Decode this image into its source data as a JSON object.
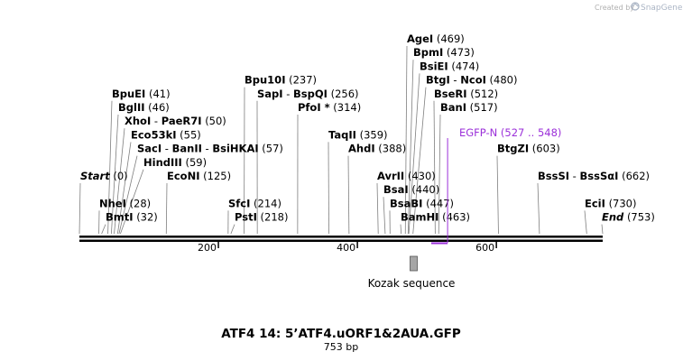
{
  "credit": {
    "prefix": "Created by",
    "brand": "SnapGene"
  },
  "title": "ATF4 14: 5’ATF4.uORF1&2AUA.GFP",
  "subtitle": "753 bp",
  "map": {
    "length": 753
  },
  "ticks": [
    {
      "pos": 200,
      "label": "200"
    },
    {
      "pos": 400,
      "label": "400"
    },
    {
      "pos": 600,
      "label": "600"
    }
  ],
  "sites": [
    {
      "names": [
        "AgeI"
      ],
      "pos_label": "(469)",
      "pos": 469,
      "row": 0
    },
    {
      "names": [
        "BpmI"
      ],
      "pos_label": "(473)",
      "pos": 473,
      "row": 1
    },
    {
      "names": [
        "BsiEI"
      ],
      "pos_label": "(474)",
      "pos": 474,
      "row": 2
    },
    {
      "names": [
        "BtgI",
        "NcoI"
      ],
      "pos_label": "(480)",
      "pos": 480,
      "row": 3
    },
    {
      "names": [
        "BseRI"
      ],
      "pos_label": "(512)",
      "pos": 512,
      "row": 4
    },
    {
      "names": [
        "BanI"
      ],
      "pos_label": "(517)",
      "pos": 517,
      "row": 5
    },
    {
      "names": [
        "Bpu10I"
      ],
      "pos_label": "(237)",
      "pos": 237,
      "row": 3
    },
    {
      "names": [
        "SapI",
        "BspQI"
      ],
      "pos_label": "(256)",
      "pos": 256,
      "row": 4
    },
    {
      "names": [
        "PfoI *"
      ],
      "pos_label": "(314)",
      "pos": 314,
      "row": 5
    },
    {
      "names": [
        "BpuEI"
      ],
      "pos_label": "(41)",
      "pos": 41,
      "row": 4
    },
    {
      "names": [
        "BglII"
      ],
      "pos_label": "(46)",
      "pos": 46,
      "row": 5
    },
    {
      "names": [
        "XhoI",
        "PaeR7I"
      ],
      "pos_label": "(50)",
      "pos": 50,
      "row": 6
    },
    {
      "names": [
        "Eco53kI"
      ],
      "pos_label": "(55)",
      "pos": 55,
      "row": 7
    },
    {
      "names": [
        "SacI",
        "BanII",
        "BsiHKAI"
      ],
      "pos_label": "(57)",
      "pos": 57,
      "row": 8
    },
    {
      "names": [
        "HindIII"
      ],
      "pos_label": "(59)",
      "pos": 59,
      "row": 9
    },
    {
      "names": [
        "TaqII"
      ],
      "pos_label": "(359)",
      "pos": 359,
      "row": 7
    },
    {
      "names": [
        "AhdI"
      ],
      "pos_label": "(388)",
      "pos": 388,
      "row": 8
    },
    {
      "names": [
        "AvrII"
      ],
      "pos_label": "(430)",
      "pos": 430,
      "row": 10
    },
    {
      "names": [
        "BsaI"
      ],
      "pos_label": "(440)",
      "pos": 440,
      "row": 11
    },
    {
      "names": [
        "BsaBI"
      ],
      "pos_label": "(447)",
      "pos": 447,
      "row": 12
    },
    {
      "names": [
        "BamHI"
      ],
      "pos_label": "(463)",
      "pos": 463,
      "row": 13
    },
    {
      "names": [
        "BtgZI"
      ],
      "pos_label": "(603)",
      "pos": 603,
      "row": 8
    },
    {
      "names": [
        "BssSI",
        "BssSαI"
      ],
      "pos_label": "(662)",
      "pos": 662,
      "row": 10
    },
    {
      "names": [
        "EciI"
      ],
      "pos_label": "(730)",
      "pos": 730,
      "row": 12
    },
    {
      "names": [
        "End"
      ],
      "pos_label": "(753)",
      "pos": 753,
      "row": 13,
      "italic": true
    },
    {
      "names": [
        "Start"
      ],
      "pos_label": "(0)",
      "pos": 0,
      "row": 10,
      "italic": true
    },
    {
      "names": [
        "EcoNI"
      ],
      "pos_label": "(125)",
      "pos": 125,
      "row": 10
    },
    {
      "names": [
        "NheI"
      ],
      "pos_label": "(28)",
      "pos": 28,
      "row": 12
    },
    {
      "names": [
        "BmtI"
      ],
      "pos_label": "(32)",
      "pos": 32,
      "row": 13
    },
    {
      "names": [
        "SfcI"
      ],
      "pos_label": "(214)",
      "pos": 214,
      "row": 12
    },
    {
      "names": [
        "PstI"
      ],
      "pos_label": "(218)",
      "pos": 218,
      "row": 13
    }
  ],
  "features": [
    {
      "name": "EGFP-N",
      "range_label": "(527 .. 548)",
      "start": 527,
      "end": 548,
      "color": "#9b30d9"
    },
    {
      "name": "Kozak sequence",
      "start": 481,
      "end": 491,
      "color": "#a6a6a6"
    }
  ]
}
